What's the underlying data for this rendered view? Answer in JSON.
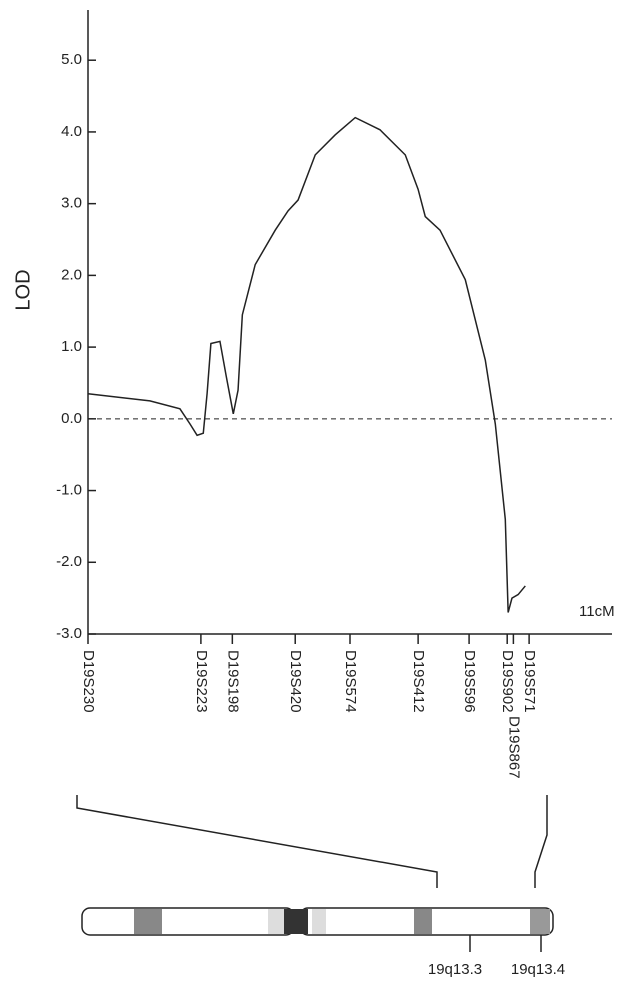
{
  "chart_data": {
    "type": "line",
    "ylabel": "LOD",
    "xlabel": "11cM",
    "xlim": [
      0,
      11
    ],
    "ylim": [
      -3,
      5.7
    ],
    "yticks": [
      {
        "value": -3,
        "label": "-3.0"
      },
      {
        "value": -2,
        "label": "-2.0"
      },
      {
        "value": -1,
        "label": "-1.0"
      },
      {
        "value": 0,
        "label": "0.0"
      },
      {
        "value": 1,
        "label": "1.0"
      },
      {
        "value": 2,
        "label": "2.0"
      },
      {
        "value": 3,
        "label": "3.0"
      },
      {
        "value": 4,
        "label": "4.0"
      },
      {
        "value": 5,
        "label": "5.0"
      }
    ],
    "xticks": [
      {
        "value": 0,
        "label": "D19S230"
      },
      {
        "value": 2.37,
        "label": "D19S223"
      },
      {
        "value": 3.03,
        "label": "D19S198"
      },
      {
        "value": 4.35,
        "label": "D19S420"
      },
      {
        "value": 5.5,
        "label": "D19S574"
      },
      {
        "value": 6.93,
        "label": "D19S412"
      },
      {
        "value": 8.0,
        "label": "D19S596"
      },
      {
        "value": 8.8,
        "label": "D19S902"
      },
      {
        "value": 8.93,
        "label": "D19S867"
      },
      {
        "value": 9.26,
        "label": "D19S571"
      }
    ],
    "hline": 0,
    "color": "#222222",
    "x": [
      0,
      1.3,
      1.93,
      2.14,
      2.29,
      2.42,
      2.5,
      2.58,
      2.77,
      2.9,
      3.05,
      3.15,
      3.24,
      3.51,
      3.93,
      4.2,
      4.41,
      4.77,
      5.19,
      5.61,
      6.13,
      6.66,
      6.93,
      7.08,
      7.39,
      7.92,
      8.34,
      8.55,
      8.76,
      8.82,
      8.9,
      9.03,
      9.18
    ],
    "values": [
      0.35,
      0.25,
      0.14,
      -0.07,
      -0.23,
      -0.2,
      0.35,
      1.05,
      1.08,
      0.6,
      0.07,
      0.4,
      1.45,
      2.15,
      2.63,
      2.9,
      3.05,
      3.68,
      3.96,
      4.2,
      4.03,
      3.68,
      3.2,
      2.82,
      2.63,
      1.94,
      0.82,
      -0.07,
      -1.4,
      -2.7,
      -2.5,
      -2.45,
      -2.33
    ]
  },
  "ideogram": {
    "bands": [
      "19q13.3",
      "19q13.4"
    ]
  }
}
